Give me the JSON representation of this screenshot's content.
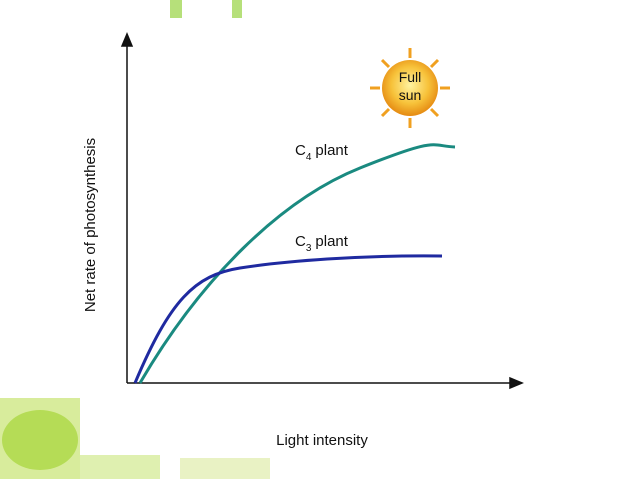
{
  "sun": {
    "line1": "Full",
    "line2": "sun"
  },
  "curves": [
    {
      "base": "C",
      "sub": "4",
      "text": "plant"
    },
    {
      "base": "C",
      "sub": "3",
      "text": "plant"
    }
  ],
  "y_axis_label": "Net rate of photosynthesis",
  "x_axis_label": "Light intensity"
}
